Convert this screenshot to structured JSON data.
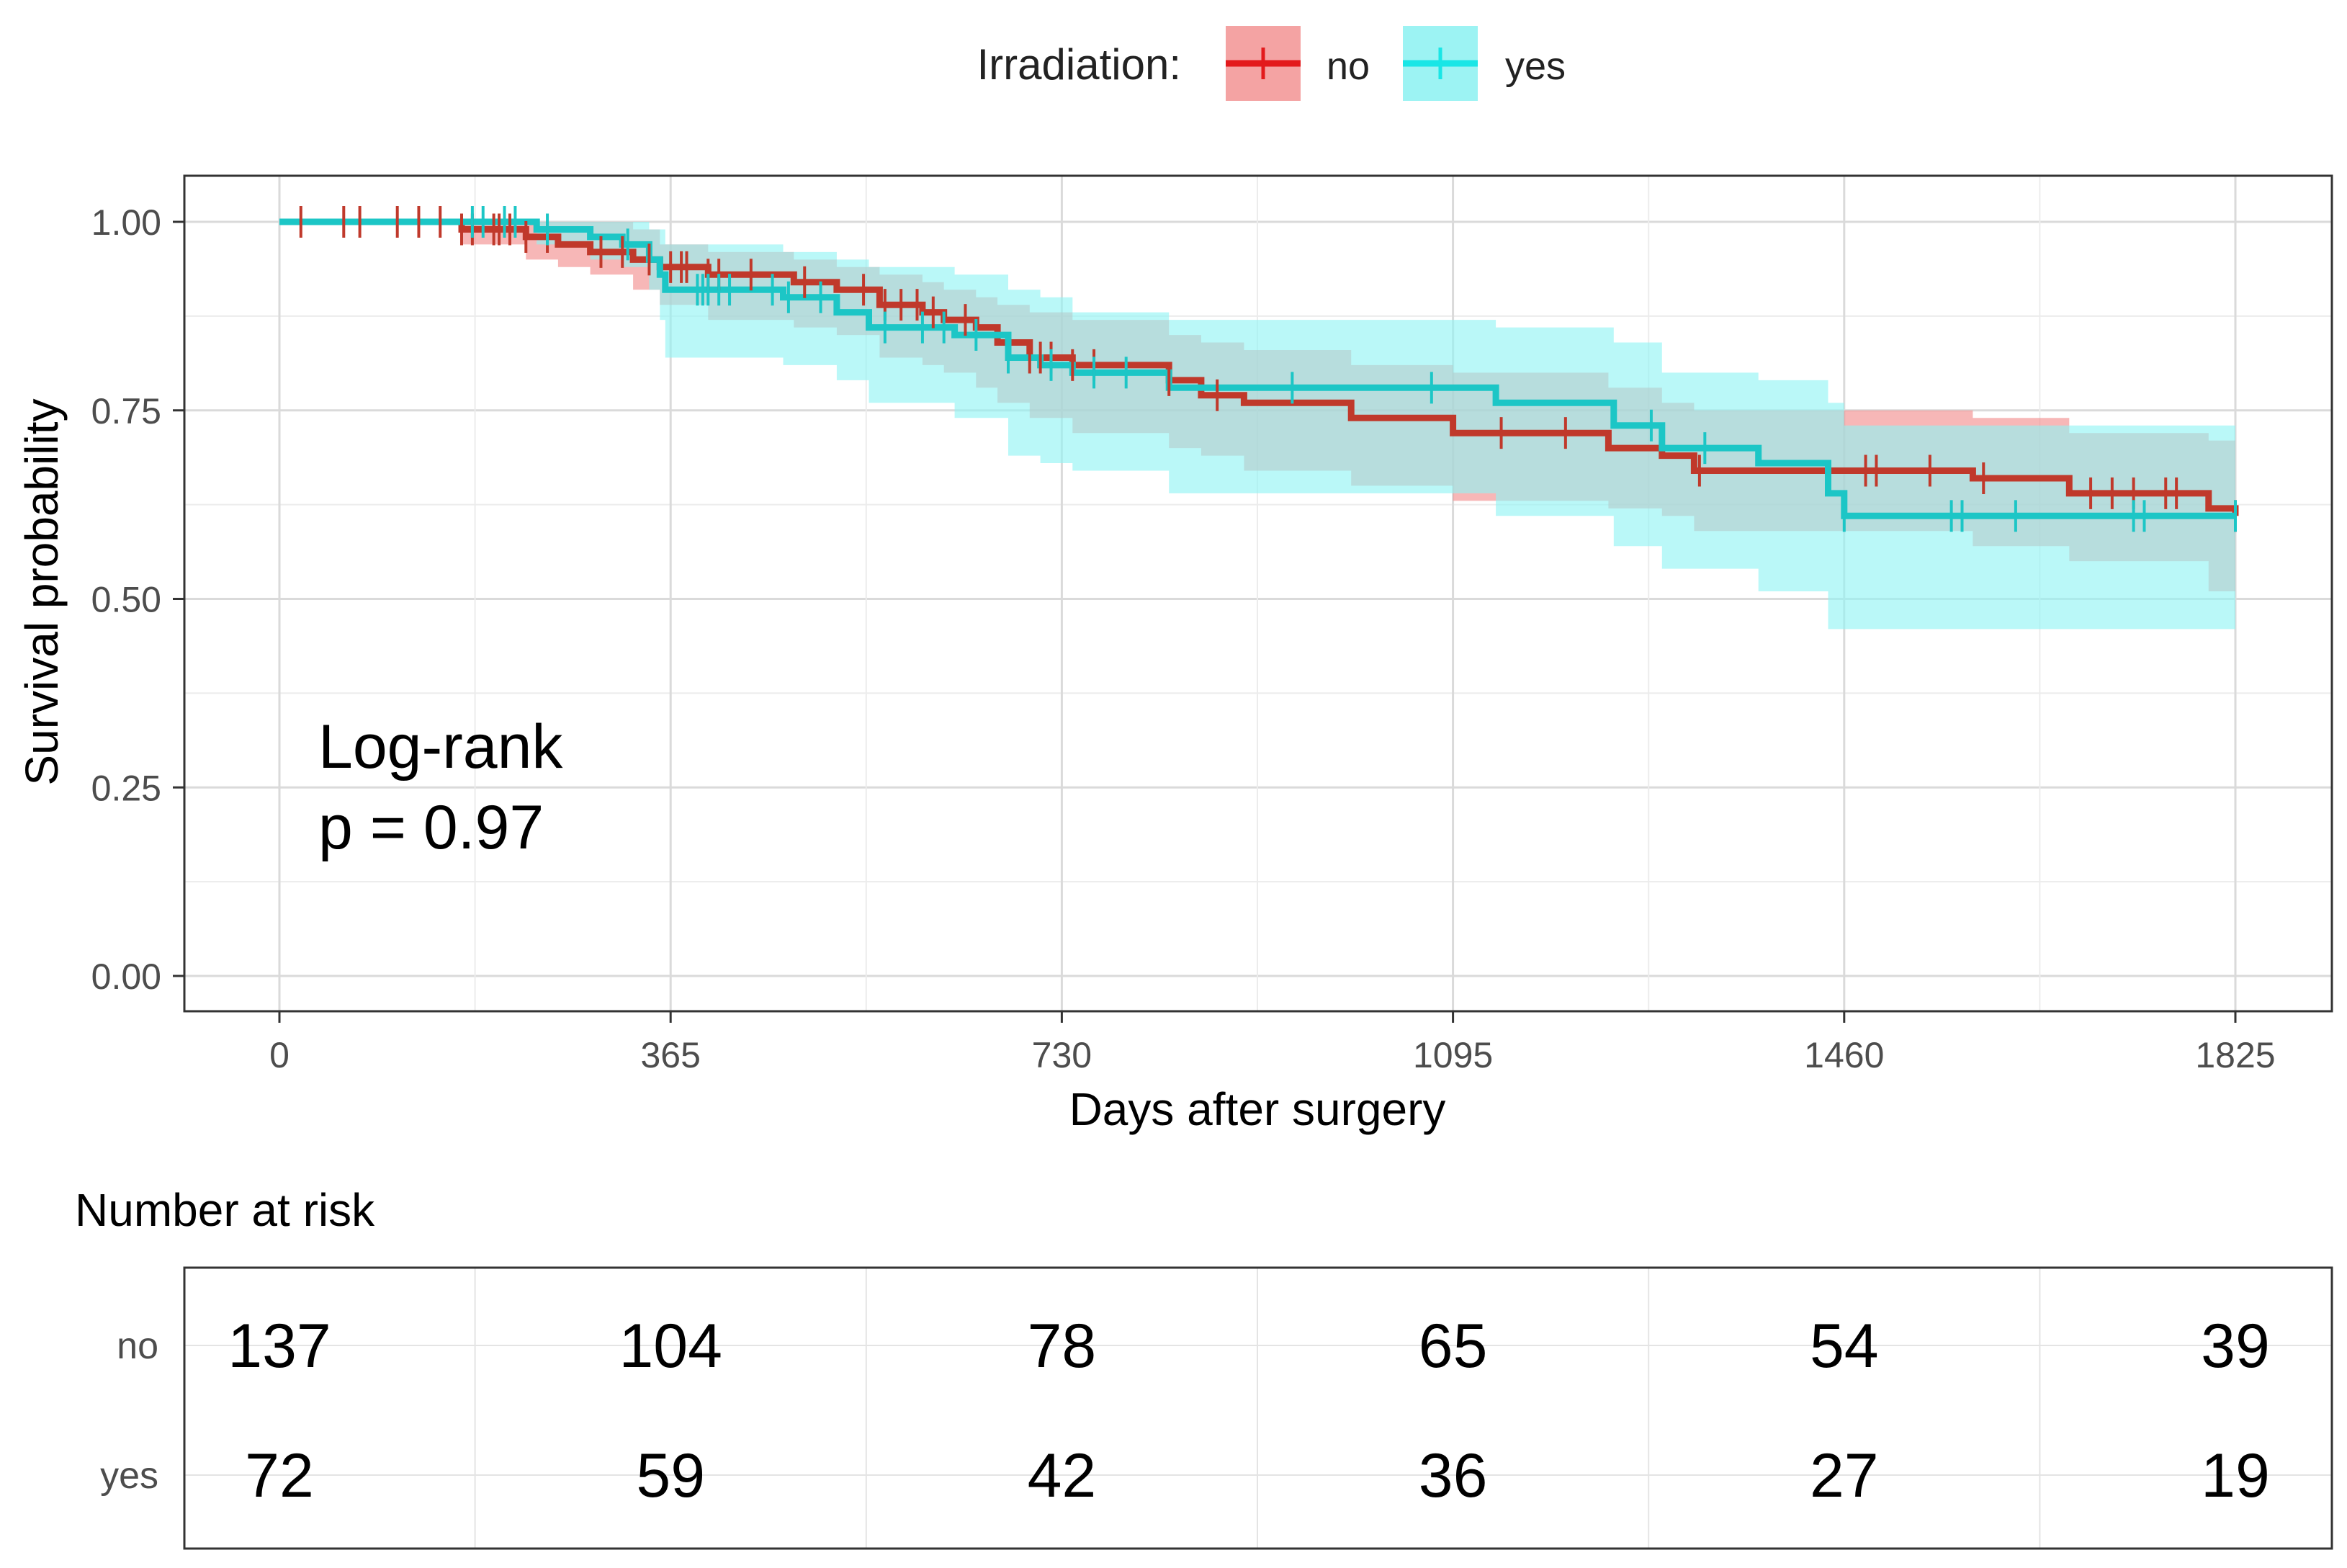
{
  "chart_data": {
    "type": "survival",
    "legend": {
      "title": "Irradiation:",
      "position": "top",
      "entries": [
        {
          "label": "no",
          "color": "#e31a1c",
          "fill": "#f4a3a3"
        },
        {
          "label": "yes",
          "color": "#19e6e6",
          "fill": "#9cf3f3"
        }
      ]
    },
    "xlabel": "Days after surgery",
    "ylabel": "Survival probability",
    "xlim": [
      0,
      1825
    ],
    "ylim": [
      0,
      1
    ],
    "x_ticks": [
      0,
      365,
      730,
      1095,
      1460,
      1825
    ],
    "x_tick_labels": [
      "0",
      "365",
      "730",
      "1095",
      "1460",
      "1825"
    ],
    "y_ticks": [
      0,
      0.25,
      0.5,
      0.75,
      1.0
    ],
    "y_tick_labels": [
      "0.00",
      "0.25",
      "0.50",
      "0.75",
      "1.00"
    ],
    "annotation": {
      "line1": "Log-rank",
      "line2": "p = 0.97"
    },
    "series": [
      {
        "name": "no",
        "line_color": "#c0392b",
        "band_color": "#f28b8b",
        "steps": [
          [
            0,
            1.0
          ],
          [
            170,
            0.99
          ],
          [
            230,
            0.98
          ],
          [
            260,
            0.97
          ],
          [
            290,
            0.96
          ],
          [
            330,
            0.95
          ],
          [
            355,
            0.94
          ],
          [
            400,
            0.93
          ],
          [
            480,
            0.92
          ],
          [
            520,
            0.91
          ],
          [
            560,
            0.89
          ],
          [
            600,
            0.88
          ],
          [
            620,
            0.87
          ],
          [
            650,
            0.86
          ],
          [
            670,
            0.84
          ],
          [
            700,
            0.82
          ],
          [
            740,
            0.81
          ],
          [
            830,
            0.79
          ],
          [
            860,
            0.77
          ],
          [
            900,
            0.76
          ],
          [
            1000,
            0.74
          ],
          [
            1095,
            0.72
          ],
          [
            1240,
            0.7
          ],
          [
            1290,
            0.69
          ],
          [
            1320,
            0.67
          ],
          [
            1580,
            0.66
          ],
          [
            1670,
            0.64
          ],
          [
            1800,
            0.62
          ],
          [
            1825,
            0.61
          ]
        ],
        "lower": [
          [
            0,
            1.0
          ],
          [
            170,
            0.97
          ],
          [
            230,
            0.95
          ],
          [
            260,
            0.94
          ],
          [
            290,
            0.93
          ],
          [
            330,
            0.91
          ],
          [
            355,
            0.89
          ],
          [
            400,
            0.87
          ],
          [
            480,
            0.86
          ],
          [
            520,
            0.85
          ],
          [
            560,
            0.82
          ],
          [
            600,
            0.81
          ],
          [
            620,
            0.8
          ],
          [
            650,
            0.78
          ],
          [
            670,
            0.76
          ],
          [
            700,
            0.74
          ],
          [
            740,
            0.72
          ],
          [
            830,
            0.7
          ],
          [
            860,
            0.69
          ],
          [
            900,
            0.67
          ],
          [
            1000,
            0.65
          ],
          [
            1095,
            0.63
          ],
          [
            1240,
            0.62
          ],
          [
            1290,
            0.61
          ],
          [
            1320,
            0.59
          ],
          [
            1580,
            0.57
          ],
          [
            1670,
            0.55
          ],
          [
            1800,
            0.51
          ],
          [
            1825,
            0.5
          ]
        ],
        "upper": [
          [
            0,
            1.0
          ],
          [
            170,
            1.0
          ],
          [
            230,
            1.0
          ],
          [
            260,
            1.0
          ],
          [
            290,
            1.0
          ],
          [
            330,
            0.99
          ],
          [
            355,
            0.97
          ],
          [
            400,
            0.96
          ],
          [
            480,
            0.95
          ],
          [
            520,
            0.94
          ],
          [
            560,
            0.93
          ],
          [
            600,
            0.92
          ],
          [
            620,
            0.91
          ],
          [
            650,
            0.9
          ],
          [
            670,
            0.89
          ],
          [
            700,
            0.88
          ],
          [
            740,
            0.87
          ],
          [
            830,
            0.85
          ],
          [
            860,
            0.84
          ],
          [
            900,
            0.83
          ],
          [
            1000,
            0.81
          ],
          [
            1095,
            0.8
          ],
          [
            1240,
            0.78
          ],
          [
            1290,
            0.76
          ],
          [
            1320,
            0.75
          ],
          [
            1580,
            0.74
          ],
          [
            1670,
            0.72
          ],
          [
            1800,
            0.71
          ],
          [
            1825,
            0.7
          ]
        ],
        "censor_times": [
          20,
          60,
          75,
          110,
          130,
          150,
          170,
          180,
          200,
          205,
          215,
          230,
          250,
          300,
          320,
          345,
          365,
          375,
          380,
          400,
          410,
          440,
          490,
          545,
          565,
          580,
          595,
          610,
          640,
          700,
          710,
          720,
          740,
          760,
          830,
          875,
          1140,
          1200,
          1325,
          1480,
          1490,
          1540,
          1590,
          1690,
          1710,
          1730,
          1760,
          1770,
          1825
        ]
      },
      {
        "name": "yes",
        "line_color": "#1cc6c6",
        "band_color": "#8ff3f3",
        "steps": [
          [
            0,
            1.0
          ],
          [
            240,
            0.99
          ],
          [
            290,
            0.98
          ],
          [
            320,
            0.97
          ],
          [
            345,
            0.95
          ],
          [
            355,
            0.93
          ],
          [
            360,
            0.91
          ],
          [
            470,
            0.9
          ],
          [
            520,
            0.88
          ],
          [
            550,
            0.86
          ],
          [
            630,
            0.85
          ],
          [
            680,
            0.82
          ],
          [
            710,
            0.81
          ],
          [
            740,
            0.8
          ],
          [
            830,
            0.78
          ],
          [
            1135,
            0.76
          ],
          [
            1245,
            0.73
          ],
          [
            1290,
            0.7
          ],
          [
            1380,
            0.68
          ],
          [
            1445,
            0.64
          ],
          [
            1460,
            0.61
          ],
          [
            1825,
            0.61
          ]
        ],
        "lower": [
          [
            0,
            1.0
          ],
          [
            240,
            0.97
          ],
          [
            290,
            0.95
          ],
          [
            320,
            0.94
          ],
          [
            345,
            0.91
          ],
          [
            355,
            0.87
          ],
          [
            360,
            0.82
          ],
          [
            470,
            0.81
          ],
          [
            520,
            0.79
          ],
          [
            550,
            0.76
          ],
          [
            630,
            0.74
          ],
          [
            680,
            0.69
          ],
          [
            710,
            0.68
          ],
          [
            740,
            0.67
          ],
          [
            830,
            0.64
          ],
          [
            1135,
            0.61
          ],
          [
            1245,
            0.57
          ],
          [
            1290,
            0.54
          ],
          [
            1380,
            0.51
          ],
          [
            1445,
            0.46
          ],
          [
            1460,
            0.46
          ],
          [
            1825,
            0.46
          ]
        ],
        "upper": [
          [
            0,
            1.0
          ],
          [
            240,
            1.0
          ],
          [
            290,
            1.0
          ],
          [
            320,
            1.0
          ],
          [
            345,
            0.99
          ],
          [
            355,
            0.99
          ],
          [
            360,
            0.97
          ],
          [
            470,
            0.96
          ],
          [
            520,
            0.95
          ],
          [
            550,
            0.94
          ],
          [
            630,
            0.93
          ],
          [
            680,
            0.91
          ],
          [
            710,
            0.9
          ],
          [
            740,
            0.88
          ],
          [
            830,
            0.87
          ],
          [
            1135,
            0.86
          ],
          [
            1245,
            0.84
          ],
          [
            1290,
            0.8
          ],
          [
            1380,
            0.79
          ],
          [
            1445,
            0.76
          ],
          [
            1460,
            0.73
          ],
          [
            1825,
            0.73
          ]
        ],
        "censor_times": [
          180,
          190,
          210,
          220,
          250,
          325,
          390,
          395,
          400,
          410,
          420,
          460,
          475,
          505,
          565,
          600,
          620,
          650,
          680,
          720,
          760,
          790,
          945,
          1075,
          1280,
          1330,
          1460,
          1560,
          1570,
          1620,
          1730,
          1740,
          1825
        ]
      }
    ],
    "risk_table": {
      "title": "Number at risk",
      "times": [
        0,
        365,
        730,
        1095,
        1460,
        1825
      ],
      "rows": [
        {
          "label": "no",
          "values": [
            "137",
            "104",
            "78",
            "65",
            "54",
            "39"
          ]
        },
        {
          "label": "yes",
          "values": [
            "72",
            "59",
            "42",
            "36",
            "27",
            "19"
          ]
        }
      ]
    }
  }
}
